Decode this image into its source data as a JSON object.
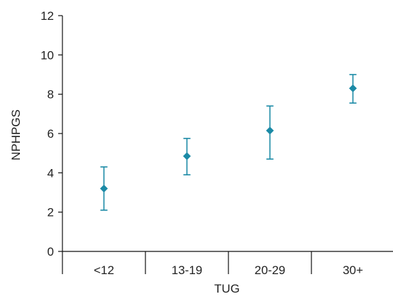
{
  "chart_data": {
    "type": "scatter",
    "title": "",
    "xlabel": "TUG",
    "ylabel": "NPHPGS",
    "categories": [
      "<12",
      "13-19",
      "20-29",
      "30+"
    ],
    "series": [
      {
        "values": [
          3.2,
          4.85,
          6.15,
          8.3
        ],
        "error_low": [
          2.1,
          3.9,
          4.7,
          7.55
        ],
        "error_high": [
          4.3,
          5.75,
          7.4,
          9.0
        ]
      }
    ],
    "ylim": [
      0,
      12
    ],
    "yticks": [
      0,
      2,
      4,
      6,
      8,
      10,
      12
    ],
    "grid": false,
    "marker": "diamond",
    "color": "#1b8aa6"
  }
}
